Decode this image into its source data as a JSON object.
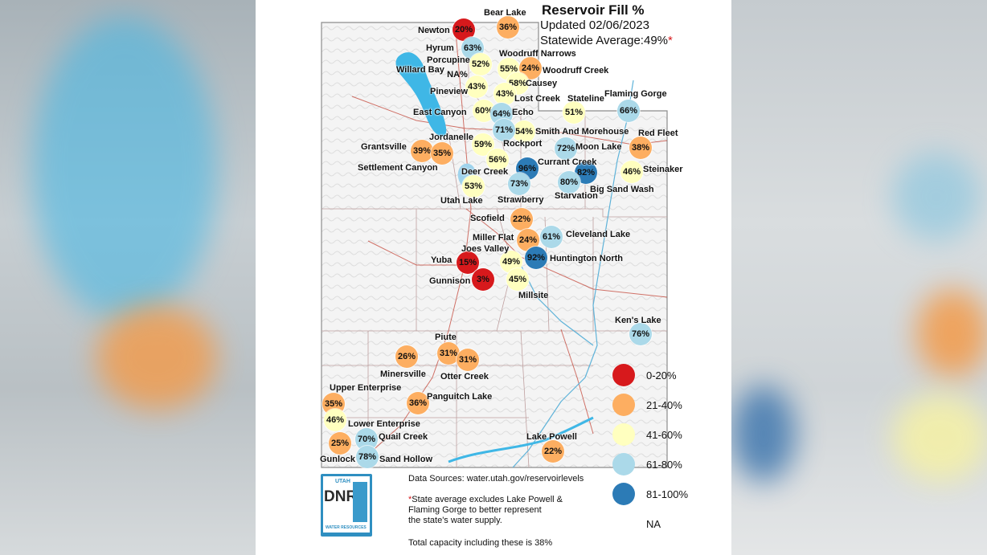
{
  "header": {
    "title": "Reservoir Fill %",
    "updated": "Updated 02/06/2023",
    "statewide": "Statewide Average:49%",
    "asterisk": "*"
  },
  "colors": {
    "red": "#d7191c",
    "orange": "#fdae61",
    "yellow": "#ffffbf",
    "lightblue": "#abd9e9",
    "darkblue": "#2c7bb6",
    "lake": "#3fb7e6"
  },
  "reservoirs": [
    {
      "name": "Newton",
      "pct": "20%",
      "color": "red"
    },
    {
      "name": "Bear Lake",
      "pct": "36%",
      "color": "orange"
    },
    {
      "name": "Hyrum",
      "pct": "63%",
      "color": "lightblue"
    },
    {
      "name": "Porcupine",
      "pct": "52%",
      "color": "yellow"
    },
    {
      "name": "Woodruff Narrows",
      "pct": "55%",
      "color": "yellow"
    },
    {
      "name": "Woodruff Creek",
      "pct": "24%",
      "color": "orange"
    },
    {
      "name": "Willard Bay",
      "pct": "",
      "color": "none"
    },
    {
      "name": "",
      "pct": "NA%",
      "color": "none"
    },
    {
      "name": "Causey",
      "pct": "58%",
      "color": "yellow"
    },
    {
      "name": "Pineview",
      "pct": "43%",
      "color": "yellow"
    },
    {
      "name": "Lost Creek",
      "pct": "43%",
      "color": "yellow"
    },
    {
      "name": "East Canyon",
      "pct": "60%",
      "color": "yellow"
    },
    {
      "name": "Echo",
      "pct": "64%",
      "color": "lightblue"
    },
    {
      "name": "Stateline",
      "pct": "51%",
      "color": "yellow"
    },
    {
      "name": "Flaming Gorge",
      "pct": "66%",
      "color": "lightblue"
    },
    {
      "name": "Smith And Morehouse",
      "pct": "54%",
      "color": "yellow"
    },
    {
      "name": "Red Fleet",
      "pct": "38%",
      "color": "orange"
    },
    {
      "name": "Rockport",
      "pct": "71%",
      "color": "lightblue"
    },
    {
      "name": "Jordanelle",
      "pct": "59%",
      "color": "yellow"
    },
    {
      "name": "Grantsville",
      "pct": "39%",
      "color": "orange"
    },
    {
      "name": "Settlement Canyon",
      "pct": "35%",
      "color": "orange"
    },
    {
      "name": "Moon Lake",
      "pct": "72%",
      "color": "lightblue"
    },
    {
      "name": "Currant Creek",
      "pct": "96%",
      "color": "darkblue"
    },
    {
      "name": "Deer Creek",
      "pct": "56%",
      "color": "yellow"
    },
    {
      "name": "Steinaker",
      "pct": "46%",
      "color": "yellow"
    },
    {
      "name": "Big Sand Wash",
      "pct": "82%",
      "color": "darkblue"
    },
    {
      "name": "Starvation",
      "pct": "80%",
      "color": "lightblue"
    },
    {
      "name": "Strawberry",
      "pct": "73%",
      "color": "lightblue"
    },
    {
      "name": "Utah Lake",
      "pct": "53%",
      "color": "yellow"
    },
    {
      "name": "Scofield",
      "pct": "22%",
      "color": "orange"
    },
    {
      "name": "Miller Flat",
      "pct": "24%",
      "color": "orange"
    },
    {
      "name": "Cleveland Lake",
      "pct": "61%",
      "color": "lightblue"
    },
    {
      "name": "Joes Valley",
      "pct": "49%",
      "color": "yellow"
    },
    {
      "name": "Huntington North",
      "pct": "92%",
      "color": "darkblue"
    },
    {
      "name": "Yuba",
      "pct": "15%",
      "color": "red"
    },
    {
      "name": "Gunnison",
      "pct": "3%",
      "color": "red"
    },
    {
      "name": "Millsite",
      "pct": "45%",
      "color": "yellow"
    },
    {
      "name": "Ken's Lake",
      "pct": "76%",
      "color": "lightblue"
    },
    {
      "name": "Piute",
      "pct": "31%",
      "color": "orange"
    },
    {
      "name": "Otter Creek",
      "pct": "31%",
      "color": "orange"
    },
    {
      "name": "Minersville",
      "pct": "26%",
      "color": "orange"
    },
    {
      "name": "Upper Enterprise",
      "pct": "35%",
      "color": "orange"
    },
    {
      "name": "Panguitch Lake",
      "pct": "36%",
      "color": "orange"
    },
    {
      "name": "Lower Enterprise",
      "pct": "46%",
      "color": "yellow"
    },
    {
      "name": "Quail Creek",
      "pct": "70%",
      "color": "lightblue"
    },
    {
      "name": "Gunlock",
      "pct": "25%",
      "color": "orange"
    },
    {
      "name": "Sand Hollow",
      "pct": "78%",
      "color": "lightblue"
    },
    {
      "name": "Lake Powell",
      "pct": "22%",
      "color": "orange"
    }
  ],
  "legend": [
    {
      "label": "0-20%",
      "color": "red"
    },
    {
      "label": "21-40%",
      "color": "orange"
    },
    {
      "label": "41-60%",
      "color": "yellow"
    },
    {
      "label": "61-80%",
      "color": "lightblue"
    },
    {
      "label": "81-100%",
      "color": "darkblue"
    },
    {
      "label": "NA",
      "color": "none"
    }
  ],
  "logo": {
    "top": "UTAH",
    "main": "DNR",
    "bottom": "WATER RESOURCES"
  },
  "notes": {
    "sources": "Data Sources: water.utah.gov/reservoirlevels",
    "asterisk": "*",
    "average_line1": "State average excludes Lake Powell &",
    "average_line2": "Flaming Gorge to better represent",
    "average_line3": "the state's water supply.",
    "capacity": "Total capacity including these is 38%"
  }
}
